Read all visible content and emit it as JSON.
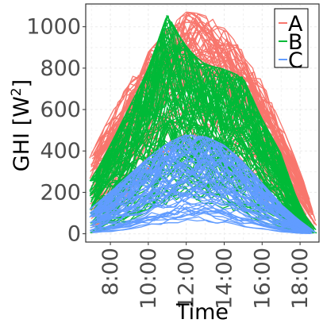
{
  "chart_data": {
    "type": "line",
    "title": "",
    "xlabel": "Time",
    "ylabel_main": "GHI [W",
    "ylabel_sup": "2",
    "ylabel_close": "]",
    "x_unit": "hour",
    "xlim": [
      6.7,
      19.0
    ],
    "ylim": [
      -40,
      1110
    ],
    "x_ticks": [
      {
        "value": 8,
        "label": "8:00"
      },
      {
        "value": 10,
        "label": "10:00"
      },
      {
        "value": 12,
        "label": "12:00"
      },
      {
        "value": 14,
        "label": "14:00"
      },
      {
        "value": 16,
        "label": "16:00"
      },
      {
        "value": 18,
        "label": "18:00"
      }
    ],
    "y_ticks": [
      {
        "value": 0,
        "label": "0"
      },
      {
        "value": 200,
        "label": "200"
      },
      {
        "value": 400,
        "label": "400"
      },
      {
        "value": 600,
        "label": "600"
      },
      {
        "value": 800,
        "label": "800"
      },
      {
        "value": 1000,
        "label": "1000"
      }
    ],
    "grid": true,
    "legend_position": "top-right",
    "series": [
      {
        "name": "A",
        "color": "#F8766D",
        "hours": [
          7,
          8,
          9,
          10,
          11,
          12,
          13,
          14,
          15,
          16,
          17,
          18,
          18.8
        ],
        "envelope_upper": [
          380,
          560,
          720,
          860,
          970,
          1050,
          1040,
          980,
          860,
          720,
          520,
          300,
          80
        ],
        "envelope_lower": [
          20,
          60,
          180,
          300,
          380,
          430,
          420,
          360,
          260,
          150,
          60,
          20,
          0
        ],
        "typical": [
          120,
          300,
          500,
          700,
          860,
          940,
          930,
          850,
          700,
          520,
          320,
          140,
          20
        ]
      },
      {
        "name": "B",
        "color": "#00BA38",
        "hours": [
          7,
          8,
          9,
          10,
          11,
          12,
          13,
          14,
          15,
          16,
          17,
          18,
          18.8
        ],
        "envelope_upper": [
          250,
          420,
          600,
          780,
          1040,
          880,
          800,
          780,
          740,
          540,
          380,
          120,
          20
        ],
        "envelope_lower": [
          0,
          30,
          60,
          110,
          160,
          180,
          170,
          140,
          100,
          60,
          25,
          5,
          0
        ],
        "typical": [
          80,
          200,
          340,
          460,
          560,
          610,
          590,
          520,
          420,
          300,
          180,
          70,
          10
        ]
      },
      {
        "name": "C",
        "color": "#619CFF",
        "hours": [
          7,
          8,
          9,
          10,
          11,
          12,
          13,
          14,
          15,
          16,
          17,
          18,
          18.8
        ],
        "envelope_upper": [
          120,
          200,
          280,
          360,
          430,
          470,
          460,
          420,
          340,
          240,
          140,
          60,
          10
        ],
        "envelope_lower": [
          0,
          5,
          15,
          30,
          45,
          55,
          55,
          45,
          30,
          15,
          5,
          0,
          0
        ],
        "typical": [
          30,
          70,
          130,
          190,
          240,
          270,
          260,
          220,
          170,
          110,
          60,
          20,
          5
        ]
      }
    ]
  }
}
